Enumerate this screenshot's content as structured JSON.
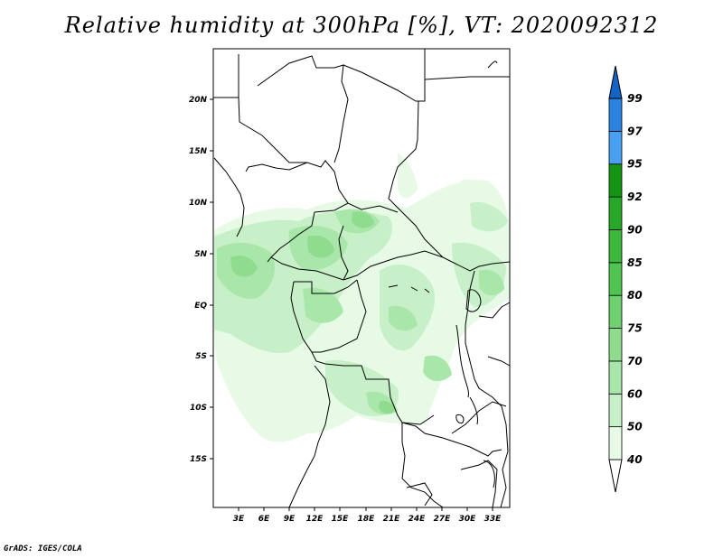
{
  "title": "Relative humidity at 300hPa [%], VT: 2020092312",
  "credit": "GrADS: IGES/COLA",
  "map": {
    "lat_ticks": [
      "20N",
      "15N",
      "10N",
      "5N",
      "EQ",
      "5S",
      "10S",
      "15S"
    ],
    "lon_ticks": [
      "3E",
      "6E",
      "9E",
      "12E",
      "15E",
      "18E",
      "21E",
      "24E",
      "27E",
      "30E",
      "33E"
    ]
  },
  "colorbar": {
    "levels": [
      "40",
      "50",
      "60",
      "70",
      "75",
      "80",
      "85",
      "90",
      "92",
      "95",
      "97",
      "99"
    ],
    "colors": [
      "#e6fae6",
      "#c8f0c8",
      "#a9e6a9",
      "#8fdc8f",
      "#6fd06f",
      "#50c450",
      "#3cb83c",
      "#28a828",
      "#149614",
      "#4aa0f0",
      "#2c82e0",
      "#1464c8"
    ]
  }
}
